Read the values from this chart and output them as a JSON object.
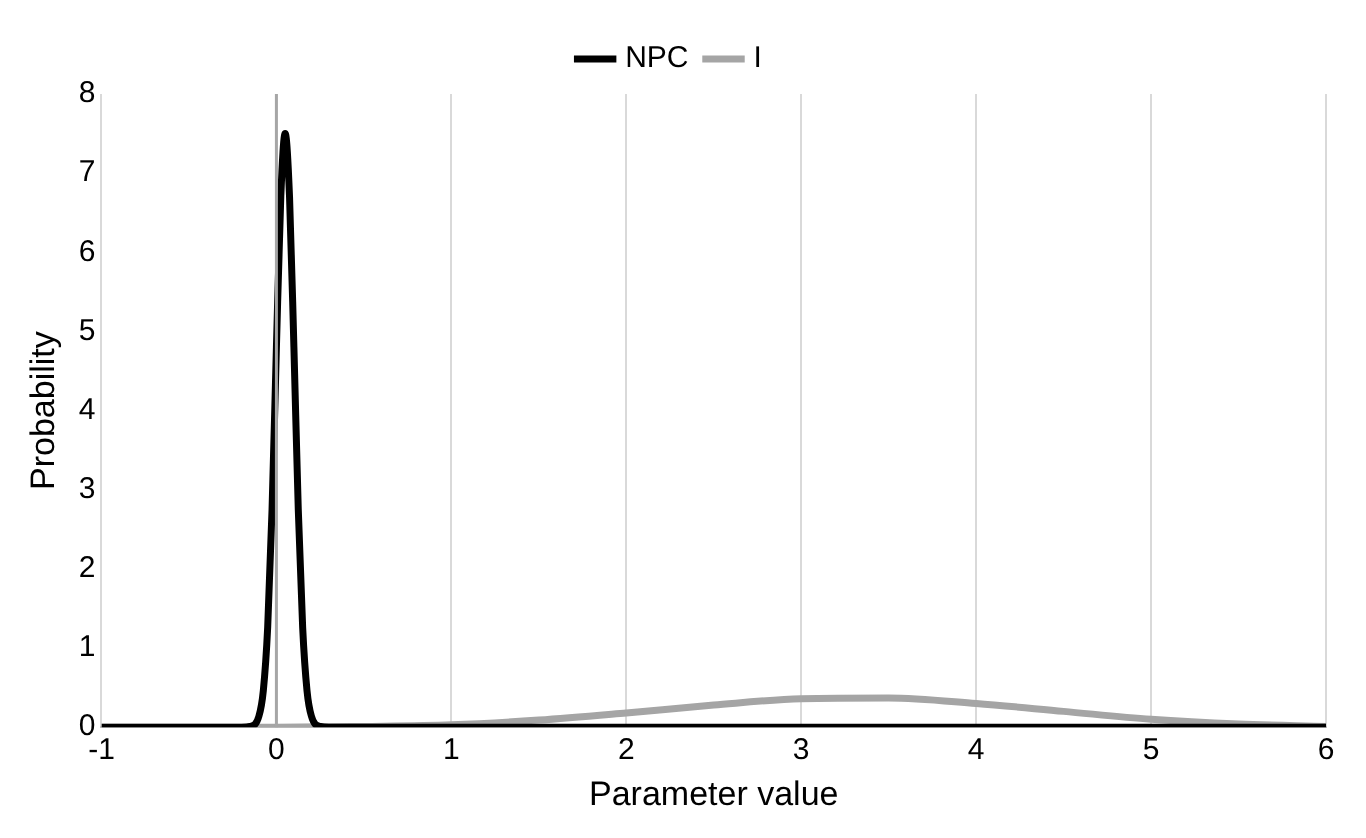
{
  "chart_data": {
    "type": "line",
    "xlabel": "Parameter value",
    "ylabel": "Probability",
    "series": [
      {
        "name": "NPC",
        "color": "#000000",
        "x": [
          -1,
          -0.2,
          -0.15,
          -0.1,
          -0.075,
          -0.05,
          -0.025,
          0,
          0.025,
          0.05,
          0.075,
          0.1,
          0.125,
          0.15,
          0.175,
          0.2,
          0.25,
          0.3,
          6
        ],
        "values": [
          0,
          0,
          0.01,
          0.14,
          0.46,
          1.26,
          2.75,
          4.8,
          6.7,
          7.5,
          6.7,
          4.8,
          2.75,
          1.26,
          0.46,
          0.14,
          0.01,
          0,
          0
        ]
      },
      {
        "name": "I",
        "color": "#a5a5a5",
        "x": [
          -1,
          0,
          0.5,
          1,
          1.5,
          2,
          2.5,
          3,
          3.5,
          4,
          4.5,
          5,
          5.5,
          6
        ],
        "values": [
          0,
          0,
          0.01,
          0.03,
          0.09,
          0.18,
          0.28,
          0.36,
          0.37,
          0.3,
          0.2,
          0.1,
          0.04,
          0.01
        ]
      }
    ],
    "xlim": [
      -1,
      6
    ],
    "xticks": [
      -1,
      0,
      1,
      2,
      3,
      4,
      5,
      6
    ],
    "ylim": [
      0,
      8
    ],
    "yticks": [
      0,
      1,
      2,
      3,
      4,
      5,
      6,
      7,
      8
    ],
    "ref_lines": [
      {
        "axis": "x",
        "value": 0,
        "color": "#a6a6a6"
      }
    ],
    "grid": "x",
    "legend": "top",
    "marker": "none",
    "line_style": "solid"
  }
}
